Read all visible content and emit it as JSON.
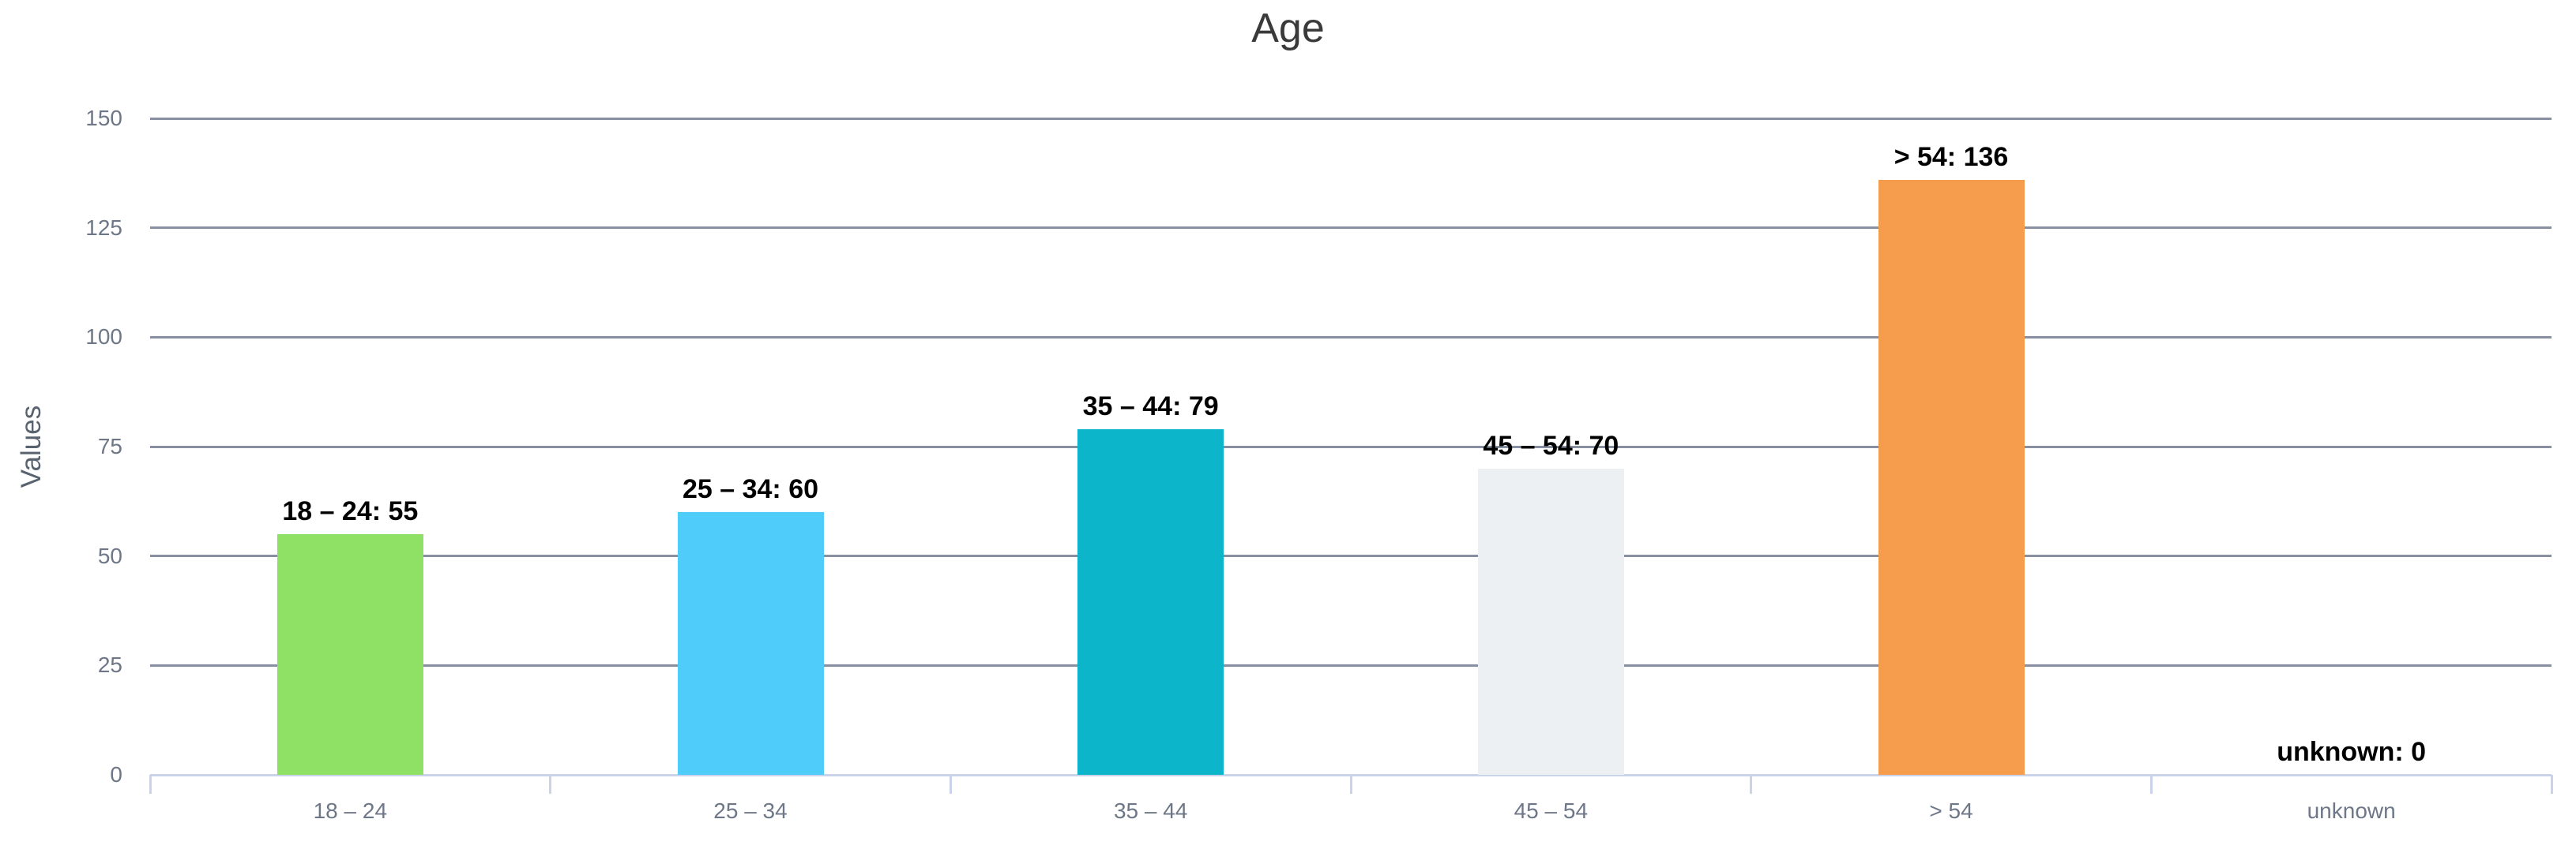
{
  "title": "Age",
  "chart_data": {
    "type": "bar",
    "title": "Age",
    "xlabel": "",
    "ylabel": "Values",
    "categories": [
      "18 – 24",
      "25 – 34",
      "35 – 44",
      "45 – 54",
      "> 54",
      "unknown"
    ],
    "values": [
      55,
      60,
      79,
      70,
      136,
      0
    ],
    "data_labels": [
      "18 – 24: 55",
      "25 – 34: 60",
      "35 – 44: 79",
      "45 – 54: 70",
      "> 54: 136",
      "unknown: 0"
    ],
    "bar_colors": [
      "#8fe165",
      "#4fccfa",
      "#0db5ca",
      "#edf0f2",
      "#f59c4d",
      null
    ],
    "ylim": [
      0,
      150
    ],
    "yticks": [
      0,
      25,
      50,
      75,
      100,
      125,
      150
    ],
    "grid": true,
    "legend": false
  },
  "colors": {
    "chart_title": "#3a3a3a",
    "axis_title": "#59626f",
    "tick_label": "#6e7787",
    "grid_line": "#878fa0",
    "axis_line": "#c9d3ea",
    "data_label": "#000000",
    "background": "#ffffff"
  }
}
